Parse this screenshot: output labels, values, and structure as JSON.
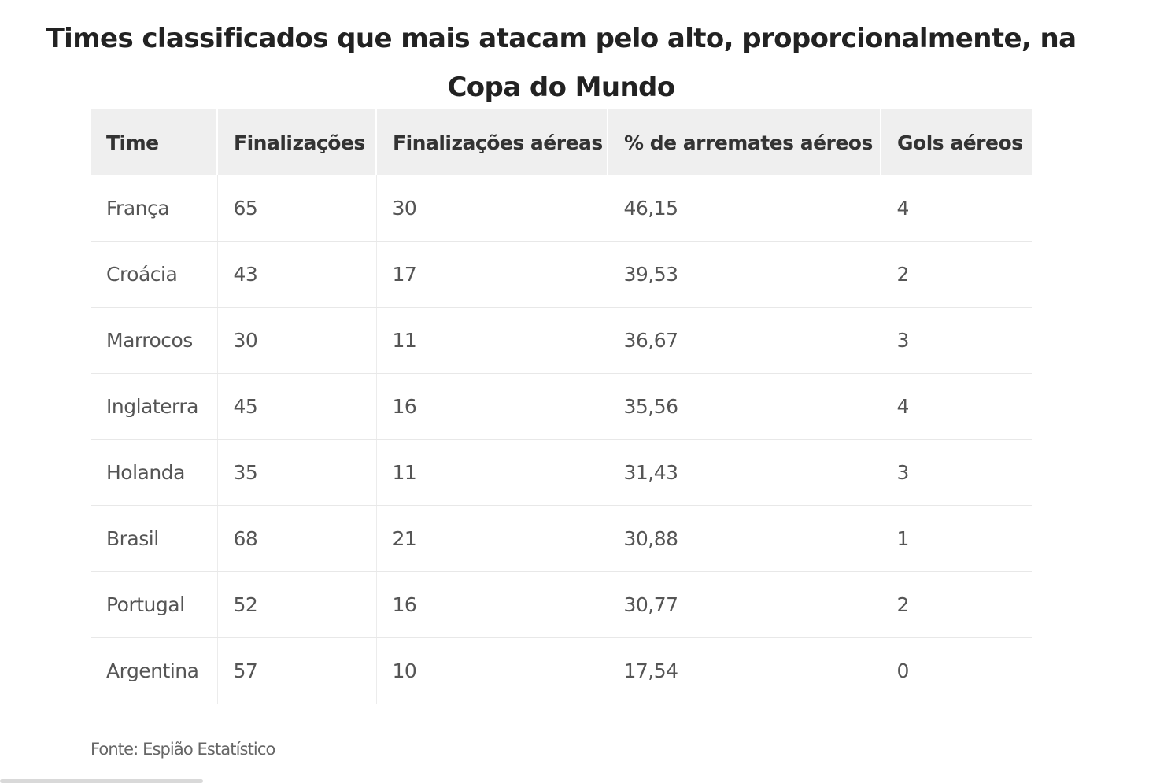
{
  "chart_data": {
    "type": "table",
    "title": "Times classificados que mais atacam pelo alto, proporcionalmente, na Copa do Mundo",
    "columns": [
      "Time",
      "Finalizações",
      "Finalizações aéreas",
      "% de arremates aéreos",
      "Gols aéreos"
    ],
    "rows": [
      [
        "França",
        "65",
        "30",
        "46,15",
        "4"
      ],
      [
        "Croácia",
        "43",
        "17",
        "39,53",
        "2"
      ],
      [
        "Marrocos",
        "30",
        "11",
        "36,67",
        "3"
      ],
      [
        "Inglaterra",
        "45",
        "16",
        "35,56",
        "4"
      ],
      [
        "Holanda",
        "35",
        "11",
        "31,43",
        "3"
      ],
      [
        "Brasil",
        "68",
        "21",
        "30,88",
        "1"
      ],
      [
        "Portugal",
        "52",
        "16",
        "30,77",
        "2"
      ],
      [
        "Argentina",
        "57",
        "10",
        "17,54",
        "0"
      ]
    ],
    "source": "Fonte: Espião Estatístico"
  }
}
